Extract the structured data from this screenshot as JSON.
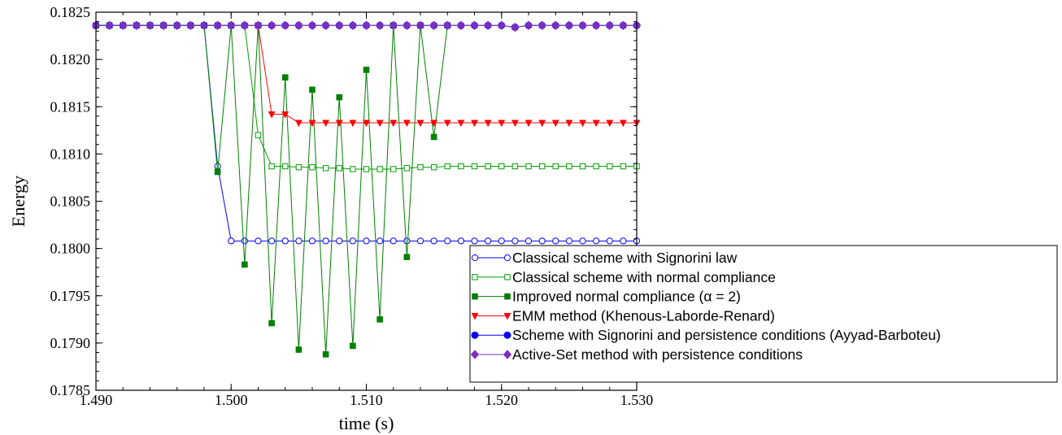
{
  "chart_data": {
    "type": "line",
    "title": "",
    "xlabel": "time (s)",
    "ylabel": "Energy",
    "xlim": [
      1.49,
      1.53
    ],
    "ylim": [
      0.1785,
      0.1825
    ],
    "x_ticks": [
      1.49,
      1.5,
      1.51,
      1.52,
      1.53
    ],
    "x_tick_labels": [
      "1.490",
      "1.500",
      "1.510",
      "1.520",
      "1.530"
    ],
    "y_ticks": [
      0.1785,
      0.179,
      0.1795,
      0.18,
      0.1805,
      0.181,
      0.1815,
      0.182,
      0.1825
    ],
    "y_tick_labels": [
      "0.1785",
      "0.1790",
      "0.1795",
      "0.1800",
      "0.1805",
      "0.1810",
      "0.1815",
      "0.1820",
      "0.1825"
    ],
    "grid": false,
    "legend_position": "bottom-right",
    "series": [
      {
        "name": "Classical scheme with Signorini law",
        "color": "#0000ff",
        "marker": "circle-open",
        "x": [
          1.49,
          1.491,
          1.492,
          1.493,
          1.494,
          1.495,
          1.496,
          1.497,
          1.498,
          1.499,
          1.5,
          1.501,
          1.502,
          1.503,
          1.504,
          1.505,
          1.506,
          1.507,
          1.508,
          1.509,
          1.51,
          1.511,
          1.512,
          1.513,
          1.514,
          1.515,
          1.516,
          1.517,
          1.518,
          1.519,
          1.52,
          1.521,
          1.522,
          1.523,
          1.524,
          1.525,
          1.526,
          1.527,
          1.528,
          1.529,
          1.53
        ],
        "y": [
          0.18236,
          0.18236,
          0.18236,
          0.18236,
          0.18236,
          0.18236,
          0.18236,
          0.18236,
          0.18236,
          0.18087,
          0.18008,
          0.18008,
          0.18008,
          0.18008,
          0.18008,
          0.18008,
          0.18008,
          0.18008,
          0.18008,
          0.18008,
          0.18008,
          0.18008,
          0.18008,
          0.18008,
          0.18008,
          0.18008,
          0.18008,
          0.18008,
          0.18008,
          0.18008,
          0.18008,
          0.18008,
          0.18008,
          0.18008,
          0.18008,
          0.18008,
          0.18008,
          0.18008,
          0.18008,
          0.18008,
          0.18008
        ]
      },
      {
        "name": "Classical scheme with normal compliance",
        "color": "#00a000",
        "marker": "square-open",
        "x": [
          1.49,
          1.491,
          1.492,
          1.493,
          1.494,
          1.495,
          1.496,
          1.497,
          1.498,
          1.499,
          1.5,
          1.501,
          1.502,
          1.503,
          1.504,
          1.505,
          1.506,
          1.507,
          1.508,
          1.509,
          1.51,
          1.511,
          1.512,
          1.513,
          1.514,
          1.515,
          1.516,
          1.517,
          1.518,
          1.519,
          1.52,
          1.521,
          1.522,
          1.523,
          1.524,
          1.525,
          1.526,
          1.527,
          1.528,
          1.529,
          1.53
        ],
        "y": [
          0.18236,
          0.18236,
          0.18236,
          0.18236,
          0.18236,
          0.18236,
          0.18236,
          0.18236,
          0.18236,
          0.18236,
          0.18236,
          0.18236,
          0.1812,
          0.18087,
          0.18087,
          0.18086,
          0.18086,
          0.18085,
          0.18085,
          0.18084,
          0.18084,
          0.18084,
          0.18084,
          0.18085,
          0.18086,
          0.18086,
          0.18087,
          0.18087,
          0.18087,
          0.18087,
          0.18087,
          0.18087,
          0.18087,
          0.18087,
          0.18087,
          0.18087,
          0.18087,
          0.18087,
          0.18087,
          0.18087,
          0.18087
        ]
      },
      {
        "name": "Improved normal compliance (α = 2)",
        "color": "#008000",
        "marker": "square-filled",
        "x": [
          1.49,
          1.491,
          1.492,
          1.493,
          1.494,
          1.495,
          1.496,
          1.497,
          1.498,
          1.499,
          1.5,
          1.501,
          1.502,
          1.503,
          1.504,
          1.505,
          1.506,
          1.507,
          1.508,
          1.509,
          1.51,
          1.511,
          1.512,
          1.513,
          1.514,
          1.515,
          1.516
        ],
        "y": [
          0.18236,
          0.18236,
          0.18236,
          0.18236,
          0.18236,
          0.18236,
          0.18236,
          0.18236,
          0.18236,
          0.18081,
          0.18236,
          0.17983,
          0.18236,
          0.17921,
          0.18181,
          0.17893,
          0.18168,
          0.17888,
          0.1816,
          0.17897,
          0.18189,
          0.17925,
          0.18236,
          0.17991,
          0.18236,
          0.18118,
          0.18236
        ]
      },
      {
        "name": "EMM method (Khenous-Laborde-Renard)",
        "color": "#ff0000",
        "marker": "triangle-down-filled",
        "x": [
          1.502,
          1.503,
          1.504,
          1.505,
          1.506,
          1.507,
          1.508,
          1.509,
          1.51,
          1.511,
          1.512,
          1.513,
          1.514,
          1.515,
          1.516,
          1.517,
          1.518,
          1.519,
          1.52,
          1.521,
          1.522,
          1.523,
          1.524,
          1.525,
          1.526,
          1.527,
          1.528,
          1.529,
          1.53
        ],
        "y": [
          0.18236,
          0.18142,
          0.18142,
          0.18133,
          0.18133,
          0.18133,
          0.18133,
          0.18133,
          0.18133,
          0.18133,
          0.18133,
          0.18133,
          0.18133,
          0.18133,
          0.18133,
          0.18133,
          0.18133,
          0.18133,
          0.18133,
          0.18133,
          0.18133,
          0.18133,
          0.18133,
          0.18133,
          0.18133,
          0.18133,
          0.18133,
          0.18133,
          0.18133
        ]
      },
      {
        "name": "Scheme with Signorini and persistence conditions (Ayyad-Barboteu)",
        "color": "#0000ff",
        "marker": "circle-filled",
        "x": [
          1.49,
          1.491,
          1.492,
          1.493,
          1.494,
          1.495,
          1.496,
          1.497,
          1.498,
          1.499,
          1.5,
          1.501,
          1.502,
          1.503,
          1.504,
          1.505,
          1.506,
          1.507,
          1.508,
          1.509,
          1.51,
          1.511,
          1.512,
          1.513,
          1.514,
          1.515,
          1.516,
          1.517,
          1.518,
          1.519,
          1.52,
          1.521,
          1.522,
          1.523,
          1.524,
          1.525,
          1.526,
          1.527,
          1.528,
          1.529,
          1.53
        ],
        "y": [
          0.18236,
          0.18236,
          0.18236,
          0.18236,
          0.18236,
          0.18236,
          0.18236,
          0.18236,
          0.18236,
          0.18236,
          0.18236,
          0.18236,
          0.18236,
          0.18236,
          0.18236,
          0.18236,
          0.18236,
          0.18236,
          0.18236,
          0.18236,
          0.18236,
          0.18236,
          0.18236,
          0.18236,
          0.18236,
          0.18236,
          0.18236,
          0.18236,
          0.18236,
          0.18236,
          0.18236,
          0.18234,
          0.18236,
          0.18236,
          0.18236,
          0.18236,
          0.18236,
          0.18236,
          0.18236,
          0.18236,
          0.18236
        ]
      },
      {
        "name": "Active-Set method with persistence conditions",
        "color": "#7b2fbf",
        "marker": "diamond-filled",
        "x": [
          1.49,
          1.491,
          1.492,
          1.493,
          1.494,
          1.495,
          1.496,
          1.497,
          1.498,
          1.499,
          1.5,
          1.501,
          1.502,
          1.503,
          1.504,
          1.505,
          1.506,
          1.507,
          1.508,
          1.509,
          1.51,
          1.511,
          1.512,
          1.513,
          1.514,
          1.515,
          1.516,
          1.517,
          1.518,
          1.519,
          1.52,
          1.521,
          1.522,
          1.523,
          1.524,
          1.525,
          1.526,
          1.527,
          1.528,
          1.529,
          1.53
        ],
        "y": [
          0.18236,
          0.18236,
          0.18236,
          0.18236,
          0.18236,
          0.18236,
          0.18236,
          0.18236,
          0.18236,
          0.18236,
          0.18236,
          0.18236,
          0.18236,
          0.18236,
          0.18236,
          0.18236,
          0.18236,
          0.18236,
          0.18236,
          0.18236,
          0.18236,
          0.18236,
          0.18236,
          0.18236,
          0.18236,
          0.18236,
          0.18236,
          0.18236,
          0.18236,
          0.18236,
          0.18236,
          0.18234,
          0.18236,
          0.18236,
          0.18236,
          0.18236,
          0.18236,
          0.18236,
          0.18236,
          0.18236,
          0.18236
        ]
      }
    ]
  }
}
